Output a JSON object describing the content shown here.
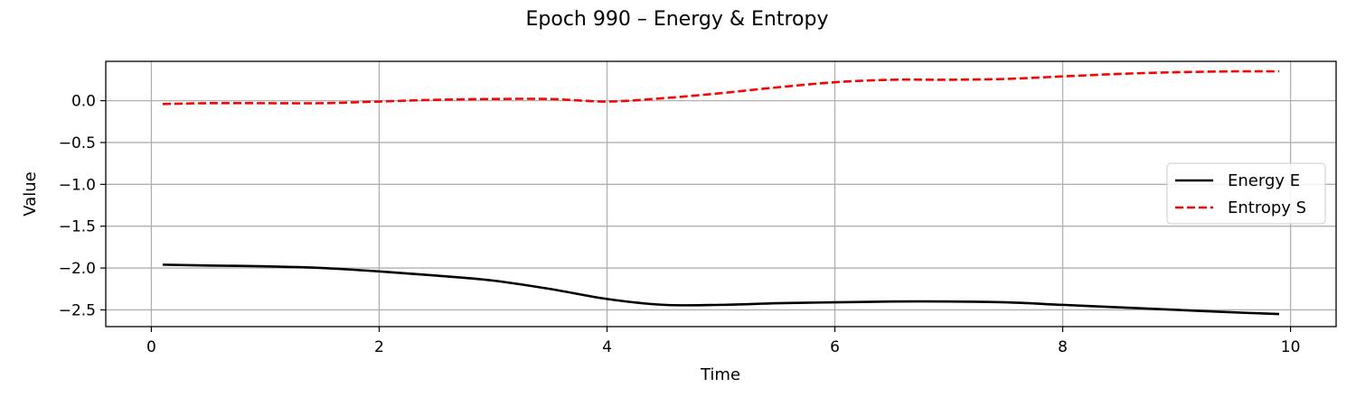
{
  "chart_data": {
    "type": "line",
    "title": "Epoch 990 – Energy & Entropy",
    "xlabel": "Time",
    "ylabel": "Value",
    "xlim": [
      -0.4,
      10.4
    ],
    "ylim": [
      -2.7,
      0.47
    ],
    "xticks": [
      0,
      2,
      4,
      6,
      8,
      10
    ],
    "xtick_labels": [
      "0",
      "2",
      "4",
      "6",
      "8",
      "10"
    ],
    "yticks": [
      0.0,
      -0.5,
      -1.0,
      -1.5,
      -2.0,
      -2.5
    ],
    "ytick_labels": [
      "0.0",
      "−0.5",
      "−1.0",
      "−1.5",
      "−2.0",
      "−2.5"
    ],
    "grid": true,
    "legend_position": "center-right",
    "x": [
      0.1,
      0.5,
      1.0,
      1.5,
      2.0,
      2.5,
      3.0,
      3.5,
      4.0,
      4.5,
      5.0,
      5.5,
      6.0,
      6.5,
      7.0,
      7.5,
      8.0,
      8.5,
      9.0,
      9.5,
      9.9
    ],
    "series": [
      {
        "name": "Energy E",
        "color": "#000000",
        "style": "solid",
        "values": [
          -1.96,
          -1.97,
          -1.98,
          -2.0,
          -2.04,
          -2.09,
          -2.15,
          -2.25,
          -2.37,
          -2.44,
          -2.44,
          -2.42,
          -2.41,
          -2.4,
          -2.4,
          -2.41,
          -2.44,
          -2.47,
          -2.5,
          -2.53,
          -2.55
        ]
      },
      {
        "name": "Entropy S",
        "color": "#ff0000",
        "style": "dashed",
        "values": [
          -0.04,
          -0.03,
          -0.03,
          -0.03,
          -0.01,
          0.01,
          0.02,
          0.02,
          -0.01,
          0.03,
          0.09,
          0.16,
          0.22,
          0.25,
          0.25,
          0.26,
          0.29,
          0.32,
          0.34,
          0.35,
          0.35
        ]
      }
    ]
  }
}
